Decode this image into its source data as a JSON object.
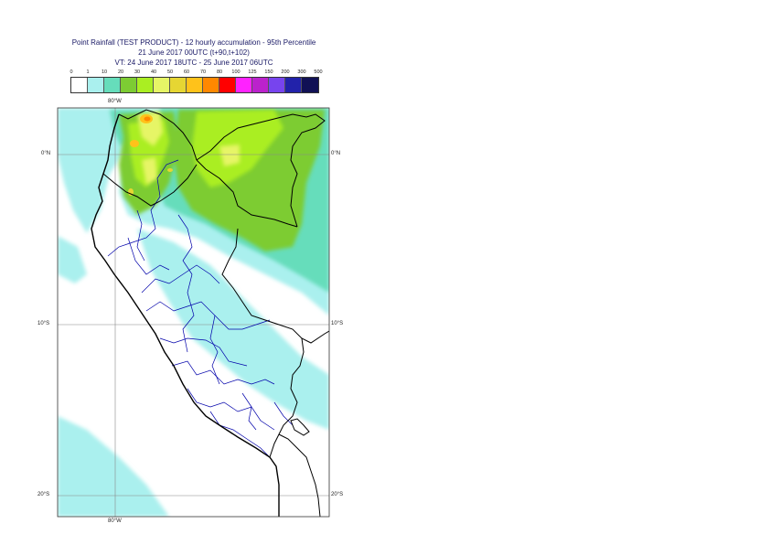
{
  "title": {
    "line1": "Point Rainfall (TEST PRODUCT) - 12 hourly accumulation - 95th Percentile",
    "line2": "21 June 2017 00UTC (t+90,t+102)",
    "line3": "VT: 24 June 2017 18UTC - 25 June 2017 06UTC"
  },
  "legend": {
    "thresholds": [
      "0",
      "1",
      "10",
      "20",
      "30",
      "40",
      "50",
      "60",
      "70",
      "80",
      "100",
      "125",
      "150",
      "200",
      "300",
      "500"
    ],
    "colors": [
      "#ffffff",
      "#aaf0ee",
      "#66ddbb",
      "#7dcc33",
      "#aaee22",
      "#e6f566",
      "#e6d633",
      "#ffc21a",
      "#ff8800",
      "#ff0000",
      "#ff22ff",
      "#bb22cc",
      "#7744ee",
      "#2222aa",
      "#111155"
    ]
  },
  "grid": {
    "lon_top": "80°W",
    "lon_bottom": "80°W",
    "lat_0_left": "0°N",
    "lat_0_right": "0°N",
    "lat_10_left": "10°S",
    "lat_10_right": "10°S",
    "lat_20_left": "20°S",
    "lat_20_right": "20°S"
  },
  "colors": {
    "coast": "#000000",
    "admin_borders": "#0000aa",
    "gridlines": "#888888",
    "title_text": "#1a1a66"
  }
}
